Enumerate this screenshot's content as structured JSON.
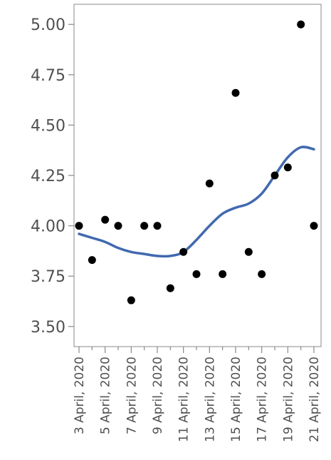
{
  "chart_data": {
    "type": "scatter",
    "title": "",
    "xlabel": "",
    "ylabel": "",
    "ylim": [
      3.4,
      5.1
    ],
    "y_ticks": [
      "5.00",
      "4.75",
      "4.50",
      "4.25",
      "4.00",
      "3.75",
      "3.50"
    ],
    "x_tick_labels": [
      "3 April, 2020",
      "5 April, 2020",
      "7 April, 2020",
      "9 April, 2020",
      "11 April, 2020",
      "13 April, 2020",
      "15 April, 2020",
      "17 April, 2020",
      "19 April, 2020",
      "21 April, 2020"
    ],
    "dates": [
      "3 April, 2020",
      "4 April, 2020",
      "5 April, 2020",
      "6 April, 2020",
      "7 April, 2020",
      "8 April, 2020",
      "9 April, 2020",
      "10 April, 2020",
      "11 April, 2020",
      "12 April, 2020",
      "13 April, 2020",
      "14 April, 2020",
      "15 April, 2020",
      "16 April, 2020",
      "17 April, 2020",
      "18 April, 2020",
      "19 April, 2020",
      "20 April, 2020",
      "21 April, 2020"
    ],
    "points": [
      4.0,
      3.83,
      4.03,
      4.0,
      3.63,
      4.0,
      4.0,
      3.69,
      3.87,
      3.76,
      4.21,
      3.76,
      4.66,
      3.87,
      3.76,
      4.25,
      4.29,
      5.0,
      4.0
    ],
    "smoother": [
      3.96,
      3.94,
      3.92,
      3.89,
      3.87,
      3.86,
      3.85,
      3.85,
      3.87,
      3.93,
      4.0,
      4.06,
      4.09,
      4.11,
      4.16,
      4.25,
      4.34,
      4.39,
      4.38
    ],
    "colors": {
      "point": "#000000",
      "smoother": "#4169b0",
      "axis": "#888888",
      "tick_text": "#505050"
    }
  }
}
